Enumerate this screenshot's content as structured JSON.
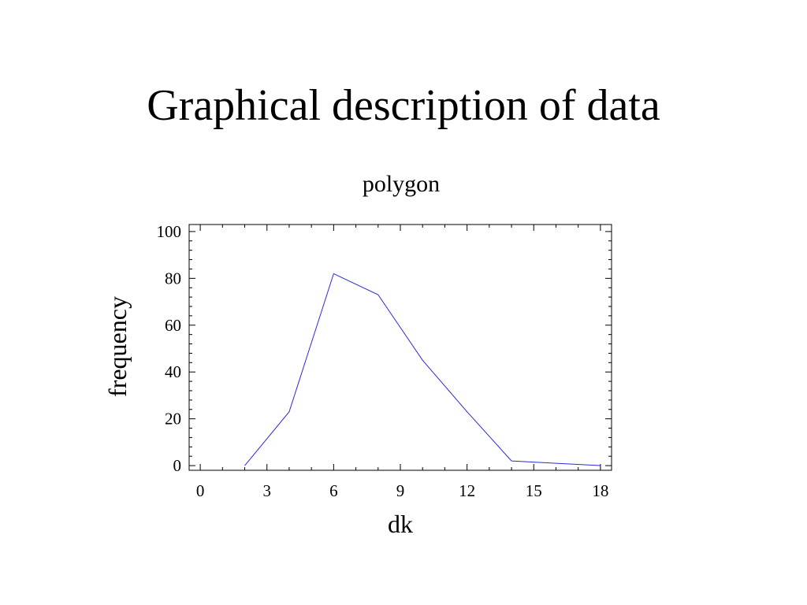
{
  "slide": {
    "title": "Graphical description of data"
  },
  "chart_data": {
    "type": "line",
    "title": "polygon",
    "xlabel": "dk",
    "ylabel": "frequency",
    "xlim": [
      -0.5,
      18.5
    ],
    "ylim": [
      -2,
      103
    ],
    "x_ticks": [
      0,
      3,
      6,
      9,
      12,
      15,
      18
    ],
    "y_ticks": [
      0,
      20,
      40,
      60,
      80,
      100
    ],
    "grid": false,
    "line_color": "#2b2bd6",
    "series": [
      {
        "x": [
          2,
          4,
          6,
          8,
          10,
          12,
          14,
          16,
          18
        ],
        "y": [
          0,
          23,
          82,
          73,
          45,
          23,
          2,
          1,
          0
        ]
      }
    ]
  }
}
